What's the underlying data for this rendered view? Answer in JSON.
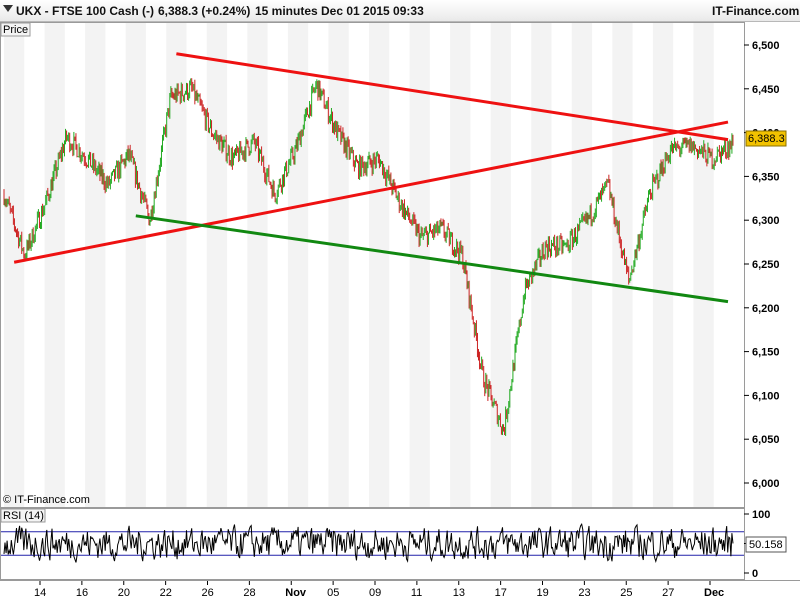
{
  "header": {
    "symbol": "UKX - FTSE 100 Cash (-)",
    "price_change": "6,388.3 (+0.24%)",
    "interval": "15 minutes",
    "datetime": "Dec 01 2015 09:33",
    "brand": "IT-Finance.com"
  },
  "panels": {
    "price_label": "Price",
    "copyright": "© IT-Finance.com",
    "rsi_label": "RSI (14)",
    "last_price_tag": "6,388.3",
    "last_rsi_tag": "50.158"
  },
  "colors": {
    "up_candle": "#22aa22",
    "down_candle": "#cc2222",
    "resistance_line": "#ee1111",
    "support_line": "#118811",
    "price_tag_bg": "#f2c200",
    "rsi_line": "#000000",
    "rsi_bounds": "#2222aa"
  },
  "chart_data": [
    {
      "type": "candlestick",
      "title": "UKX - FTSE 100 Cash (-)",
      "interval": "15 minutes",
      "ylabel": "Price",
      "ylim": [
        6000,
        6500
      ],
      "y_ticks": [
        "6,500",
        "6,450",
        "6,400",
        "6,350",
        "6,300",
        "6,250",
        "6,200",
        "6,150",
        "6,100",
        "6,050",
        "6,000"
      ],
      "x_ticks": [
        {
          "label": "14",
          "bold": false
        },
        {
          "label": "16",
          "bold": false
        },
        {
          "label": "20",
          "bold": false
        },
        {
          "label": "22",
          "bold": false
        },
        {
          "label": "26",
          "bold": false
        },
        {
          "label": "28",
          "bold": false
        },
        {
          "label": "Nov",
          "bold": true
        },
        {
          "label": "05",
          "bold": false
        },
        {
          "label": "09",
          "bold": false
        },
        {
          "label": "11",
          "bold": false
        },
        {
          "label": "13",
          "bold": false
        },
        {
          "label": "17",
          "bold": false
        },
        {
          "label": "19",
          "bold": false
        },
        {
          "label": "23",
          "bold": false
        },
        {
          "label": "25",
          "bold": false
        },
        {
          "label": "27",
          "bold": false
        },
        {
          "label": "Dec",
          "bold": true
        }
      ],
      "last_price": 6388.3,
      "close_path": [
        {
          "x": "Oct 13",
          "y": 6330
        },
        {
          "x": "Oct 14",
          "y": 6260
        },
        {
          "x": "Oct 15",
          "y": 6320
        },
        {
          "x": "Oct 16",
          "y": 6395
        },
        {
          "x": "Oct 19",
          "y": 6370
        },
        {
          "x": "Oct 20",
          "y": 6340
        },
        {
          "x": "Oct 21",
          "y": 6375
        },
        {
          "x": "Oct 22",
          "y": 6300
        },
        {
          "x": "Oct 23",
          "y": 6440
        },
        {
          "x": "Oct 26",
          "y": 6450
        },
        {
          "x": "Oct 27",
          "y": 6400
        },
        {
          "x": "Oct 28",
          "y": 6370
        },
        {
          "x": "Oct 29",
          "y": 6390
        },
        {
          "x": "Oct 30",
          "y": 6330
        },
        {
          "x": "Nov 02",
          "y": 6380
        },
        {
          "x": "Nov 03",
          "y": 6455
        },
        {
          "x": "Nov 04",
          "y": 6400
        },
        {
          "x": "Nov 05",
          "y": 6360
        },
        {
          "x": "Nov 06",
          "y": 6370
        },
        {
          "x": "Nov 09",
          "y": 6320
        },
        {
          "x": "Nov 10",
          "y": 6280
        },
        {
          "x": "Nov 11",
          "y": 6290
        },
        {
          "x": "Nov 12",
          "y": 6260
        },
        {
          "x": "Nov 13",
          "y": 6120
        },
        {
          "x": "Nov 16",
          "y": 6060
        },
        {
          "x": "Nov 17",
          "y": 6220
        },
        {
          "x": "Nov 18",
          "y": 6270
        },
        {
          "x": "Nov 19",
          "y": 6270
        },
        {
          "x": "Nov 20",
          "y": 6300
        },
        {
          "x": "Nov 23",
          "y": 6340
        },
        {
          "x": "Nov 24",
          "y": 6230
        },
        {
          "x": "Nov 25",
          "y": 6330
        },
        {
          "x": "Nov 26",
          "y": 6380
        },
        {
          "x": "Nov 27",
          "y": 6385
        },
        {
          "x": "Nov 30",
          "y": 6370
        },
        {
          "x": "Dec 01",
          "y": 6388
        }
      ],
      "trendlines": [
        {
          "name": "resistance",
          "color": "red",
          "from": {
            "x": "Oct 23",
            "y": 6490
          },
          "to": {
            "x": "Dec 01",
            "y": 6392
          }
        },
        {
          "name": "rising support",
          "color": "red",
          "from": {
            "x": "Oct 13",
            "y": 6252
          },
          "to": {
            "x": "Dec 01",
            "y": 6412
          }
        },
        {
          "name": "support",
          "color": "green",
          "from": {
            "x": "Oct 21",
            "y": 6305
          },
          "to": {
            "x": "Dec 01",
            "y": 6207
          }
        }
      ]
    },
    {
      "type": "line",
      "title": "RSI (14)",
      "ylim": [
        0,
        100
      ],
      "y_ticks": [
        "100",
        "50",
        "0"
      ],
      "upper_bound": 70,
      "lower_bound": 30,
      "last_value": 50.158
    }
  ]
}
